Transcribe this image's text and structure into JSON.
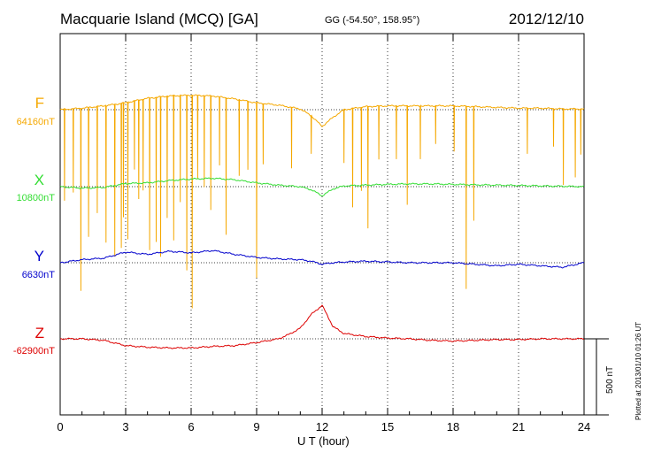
{
  "header": {
    "station": "Macquarie Island (MCQ)  [GA]",
    "coords": "GG (-54.50°, 158.95°)",
    "date": "2012/12/10"
  },
  "footer": {
    "plotted": "Plotted at 2013/01/10 01:26 UT"
  },
  "chart_data": {
    "type": "line",
    "xlabel": "U T (hour)",
    "x_range": [
      0,
      24
    ],
    "x_ticks": [
      "0",
      "3",
      "6",
      "9",
      "12",
      "15",
      "18",
      "21",
      "24"
    ],
    "grid": "dotted vertical at every 3 hours",
    "scale_bar": {
      "label": "500 nT",
      "value_nT": 500
    },
    "series": [
      {
        "name": "F",
        "baseline_label": "64160nT",
        "baseline_nT": 64160,
        "color": "#f5a800",
        "x": [
          0,
          1,
          2,
          3,
          4,
          5,
          6,
          7,
          8,
          9,
          10,
          11,
          11.5,
          12,
          12.5,
          13,
          14,
          15,
          16,
          17,
          18,
          19,
          20,
          21,
          22,
          23,
          24
        ],
        "y": [
          0,
          10,
          25,
          45,
          75,
          90,
          95,
          90,
          70,
          45,
          30,
          5,
          -40,
          -110,
          -50,
          0,
          20,
          25,
          25,
          25,
          25,
          20,
          15,
          10,
          10,
          5,
          5
        ],
        "dips": [
          [
            0.2,
            600
          ],
          [
            0.6,
            550
          ],
          [
            0.95,
            1200
          ],
          [
            1.3,
            850
          ],
          [
            1.7,
            700
          ],
          [
            2.1,
            900
          ],
          [
            2.5,
            1000
          ],
          [
            2.8,
            950
          ],
          [
            2.9,
            750
          ],
          [
            3.1,
            900
          ],
          [
            3.4,
            450
          ],
          [
            3.6,
            650
          ],
          [
            3.8,
            600
          ],
          [
            4.1,
            1000
          ],
          [
            4.4,
            950
          ],
          [
            4.6,
            1050
          ],
          [
            4.9,
            800
          ],
          [
            5.2,
            950
          ],
          [
            5.5,
            700
          ],
          [
            5.8,
            1150
          ],
          [
            6.05,
            1400
          ],
          [
            6.3,
            550
          ],
          [
            6.6,
            600
          ],
          [
            6.9,
            750
          ],
          [
            7.3,
            450
          ],
          [
            7.6,
            900
          ],
          [
            8.2,
            500
          ],
          [
            8.6,
            450
          ],
          [
            9.0,
            1150
          ],
          [
            9.3,
            400
          ],
          [
            10.6,
            400
          ],
          [
            11.5,
            250
          ],
          [
            13.0,
            350
          ],
          [
            13.4,
            650
          ],
          [
            13.8,
            550
          ],
          [
            14.1,
            800
          ],
          [
            14.6,
            350
          ],
          [
            15.4,
            350
          ],
          [
            15.9,
            650
          ],
          [
            16.5,
            350
          ],
          [
            17.2,
            250
          ],
          [
            18.05,
            300
          ],
          [
            18.6,
            1200
          ],
          [
            18.95,
            750
          ],
          [
            21.4,
            300
          ],
          [
            22.6,
            250
          ],
          [
            23.05,
            500
          ],
          [
            23.6,
            450
          ],
          [
            23.85,
            300
          ]
        ]
      },
      {
        "name": "X",
        "baseline_label": "10800nT",
        "baseline_nT": 10800,
        "color": "#33dd33",
        "x": [
          0,
          1,
          2,
          3,
          4,
          5,
          6,
          7,
          8,
          9,
          10,
          11,
          11.5,
          12,
          12.5,
          13,
          14,
          15,
          16,
          17,
          18,
          19,
          20,
          21,
          22,
          23,
          24
        ],
        "y": [
          0,
          -10,
          -5,
          20,
          25,
          40,
          50,
          55,
          45,
          25,
          10,
          0,
          -20,
          -60,
          -15,
          5,
          10,
          15,
          18,
          18,
          15,
          12,
          10,
          8,
          5,
          3,
          0
        ]
      },
      {
        "name": "Y",
        "baseline_label": "6630nT",
        "baseline_nT": 6630,
        "color": "#0000cc",
        "x": [
          0,
          1,
          2,
          3,
          4,
          5,
          6,
          7,
          8,
          9,
          10,
          11,
          11.5,
          12,
          12.5,
          13,
          14,
          15,
          16,
          17,
          18,
          19,
          20,
          21,
          22,
          23,
          24
        ],
        "y": [
          0,
          20,
          30,
          70,
          55,
          75,
          65,
          80,
          55,
          35,
          25,
          20,
          10,
          -10,
          0,
          5,
          10,
          5,
          0,
          0,
          0,
          -10,
          -20,
          -10,
          -20,
          -30,
          0
        ]
      },
      {
        "name": "Z",
        "baseline_label": "-62900nT",
        "baseline_nT": -62900,
        "color": "#dd0000",
        "x": [
          0,
          1,
          2,
          3,
          4,
          5,
          6,
          7,
          8,
          9,
          10,
          10.5,
          11,
          11.5,
          12,
          12.5,
          13,
          14,
          15,
          16,
          17,
          18,
          19,
          20,
          21,
          22,
          23,
          24
        ],
        "y": [
          0,
          0,
          -10,
          -45,
          -55,
          -60,
          -60,
          -50,
          -45,
          -25,
          0,
          30,
          70,
          160,
          220,
          80,
          35,
          15,
          5,
          0,
          -10,
          -15,
          -10,
          -5,
          -5,
          0,
          0,
          0
        ]
      }
    ]
  }
}
